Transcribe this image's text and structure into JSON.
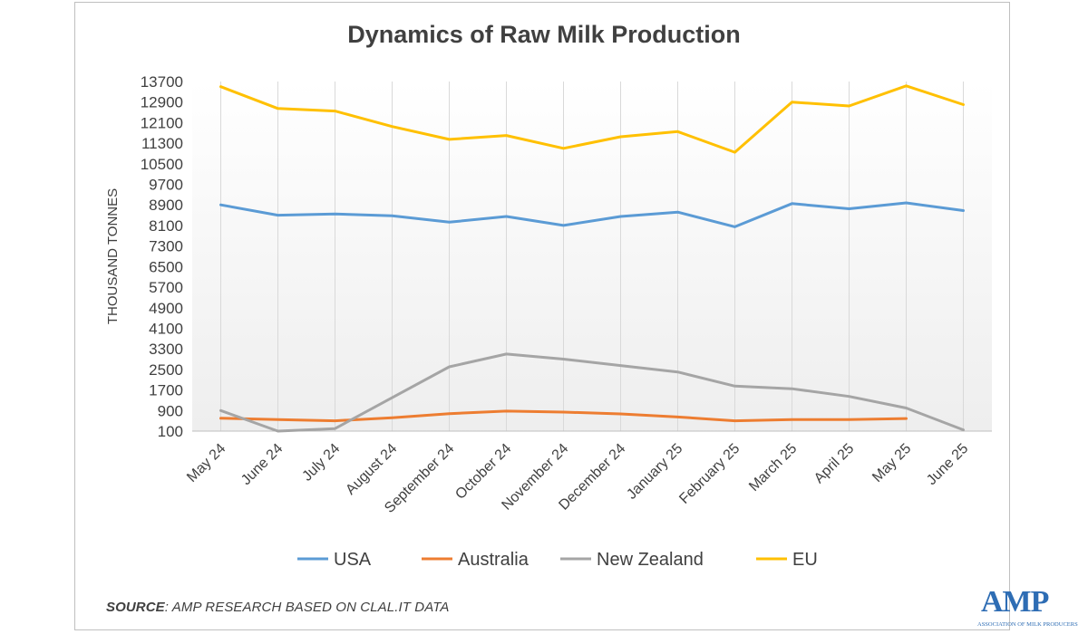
{
  "chart_data": {
    "type": "line",
    "title": "Dynamics of Raw Milk Production",
    "ylabel": "THOUSAND TONNES",
    "xlabel": "",
    "ylim": [
      100,
      13700
    ],
    "yticks": [
      100,
      900,
      1700,
      2500,
      3300,
      4100,
      4900,
      5700,
      6500,
      7300,
      8100,
      8900,
      9700,
      10500,
      11300,
      12100,
      12900,
      13700
    ],
    "grid": "vertical",
    "legend_position": "bottom",
    "categories": [
      "May 24",
      "June 24",
      "July 24",
      "August 24",
      "September 24",
      "October 24",
      "November 24",
      "December 24",
      "January 25",
      "February 25",
      "March 25",
      "April 25",
      "May 25",
      "June 25"
    ],
    "series": [
      {
        "name": "USA",
        "color": "#5b9bd5",
        "values": [
          8900,
          8500,
          8550,
          8480,
          8230,
          8450,
          8100,
          8450,
          8620,
          8050,
          8950,
          8750,
          8980,
          8680
        ]
      },
      {
        "name": "Australia",
        "color": "#ed7d31",
        "values": [
          600,
          550,
          500,
          620,
          780,
          880,
          840,
          770,
          650,
          500,
          550,
          550,
          590,
          null
        ]
      },
      {
        "name": "New Zealand",
        "color": "#a5a5a5",
        "values": [
          900,
          100,
          200,
          1400,
          2600,
          3100,
          2900,
          2650,
          2400,
          1850,
          1750,
          1450,
          1000,
          150
        ]
      },
      {
        "name": "EU",
        "color": "#ffc000",
        "values": [
          13500,
          12650,
          12550,
          11950,
          11450,
          11600,
          11100,
          11550,
          11750,
          10950,
          12900,
          12750,
          13530,
          12800
        ]
      }
    ]
  },
  "source": {
    "label": "SOURCE",
    "text": ": AMP RESEARCH BASED ON CLAL.IT DATA"
  },
  "logo": {
    "text": "AMP",
    "subtitle": "ASSOCIATION OF MILK PRODUCERS"
  }
}
